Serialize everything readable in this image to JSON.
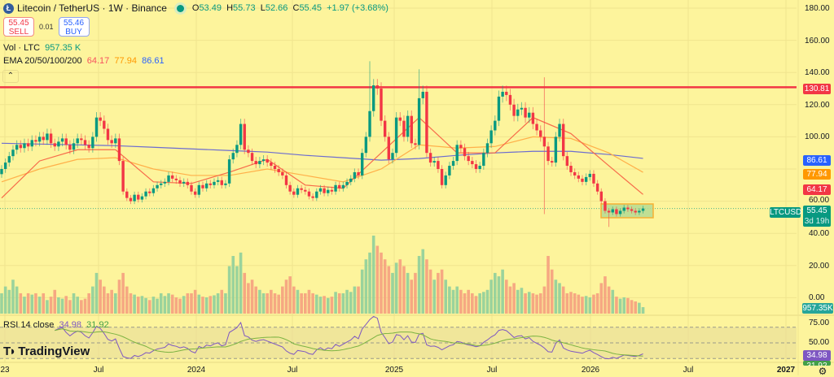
{
  "header": {
    "symbol_title": "Litecoin / TetherUS · 1W · Binance",
    "logo_letter": "Ł",
    "open_label": "O",
    "open": "53.49",
    "high_label": "H",
    "high": "55.73",
    "low_label": "L",
    "low": "52.66",
    "close_label": "C",
    "close": "55.45",
    "change": "+1.97 (+3.68%)"
  },
  "trade": {
    "sell_price": "55.45",
    "sell_label": "SELL",
    "spread": "0.01",
    "buy_price": "55.46",
    "buy_label": "BUY"
  },
  "volume_legend": {
    "label": "Vol · LTC",
    "value": "957.35 K"
  },
  "ema_legend": {
    "label": "EMA 20/50/100/200",
    "v1": "64.17",
    "v2": "77.94",
    "v3": "86.61"
  },
  "collapse_icon": "chevron-up-icon",
  "rsi_legend": {
    "label": "RSI 14 close",
    "value": "34.98",
    "ma": "31.92"
  },
  "brand": "TradingView",
  "price_axis": [
    "180.00",
    "160.00",
    "140.00",
    "120.00",
    "100.00",
    "60.00",
    "40.00",
    "20.00",
    "0.00"
  ],
  "rsi_axis": [
    "75.00",
    "50.00"
  ],
  "time_axis": [
    "23",
    "Jul",
    "2024",
    "Jul",
    "2025",
    "Jul",
    "2026",
    "Jul",
    "2027"
  ],
  "badges": {
    "resistance": "130.81",
    "ema200": "86.61",
    "ema50": "77.94",
    "ema20": "64.17",
    "symbol": "LTCUSDT",
    "last_price": "55.45",
    "countdown": "3d 19h",
    "volume": "957.35K",
    "rsi": "34.98",
    "rsi_ma": "31.92"
  },
  "colors": {
    "background": "#fdf49c",
    "up": "#089981",
    "down": "#f23645",
    "ema20": "#f7525f",
    "ema50": "#ff9800",
    "ema200": "#2962ff",
    "rsi": "#7e57c2",
    "rsi_ma": "#43a047",
    "resistance": "#f23645"
  },
  "chart_data": {
    "type": "candlestick",
    "interval": "1W",
    "ylim": [
      0,
      180
    ],
    "resistance_level": 130.81,
    "closes": [
      80,
      84,
      88,
      92,
      95,
      93,
      96,
      94,
      98,
      97,
      100,
      98,
      102,
      96,
      94,
      97,
      99,
      95,
      92,
      96,
      99,
      98,
      95,
      93,
      100,
      112,
      110,
      105,
      98,
      96,
      99,
      85,
      66,
      62,
      60,
      64,
      61,
      63,
      66,
      65,
      68,
      70,
      71,
      72,
      76,
      74,
      73,
      71,
      72,
      70,
      66,
      64,
      70,
      68,
      71,
      70,
      72,
      73,
      70,
      71,
      86,
      90,
      95,
      108,
      92,
      90,
      85,
      83,
      85,
      86,
      84,
      82,
      80,
      78,
      76,
      70,
      66,
      64,
      68,
      67,
      66,
      63,
      62,
      66,
      68,
      65,
      67,
      66,
      70,
      68,
      70,
      72,
      74,
      78,
      76,
      90,
      100,
      116,
      132,
      130,
      110,
      100,
      86,
      90,
      112,
      110,
      100,
      113,
      96,
      95,
      124,
      128,
      90,
      84,
      85,
      80,
      70,
      76,
      82,
      85,
      95,
      93,
      88,
      85,
      83,
      80,
      82,
      90,
      96,
      104,
      110,
      125,
      128,
      126,
      120,
      113,
      117,
      118,
      112,
      115,
      108,
      104,
      100,
      94,
      85,
      84,
      100,
      108,
      88,
      82,
      78,
      76,
      74,
      72,
      75,
      77,
      71,
      66,
      60,
      54,
      53,
      55,
      52,
      54,
      56,
      55,
      54,
      53,
      54,
      55.45
    ],
    "wick_extremes": [
      {
        "week": 97,
        "high": 147
      },
      {
        "week": 110,
        "high": 142
      },
      {
        "week": 143,
        "high": 137,
        "low": 52
      },
      {
        "week": 160,
        "low": 44
      }
    ],
    "volume_millions": [
      3,
      4,
      3.5,
      5,
      4,
      3,
      2.5,
      3,
      2.8,
      3,
      2.5,
      3,
      2,
      2.5,
      3.5,
      2.4,
      2.2,
      2.6,
      2,
      3,
      2.5,
      2,
      2.2,
      3,
      4,
      6,
      5,
      4,
      3,
      3.5,
      3,
      5,
      6,
      4,
      3,
      2.8,
      2.5,
      2.6,
      2.3,
      2,
      2.5,
      2.2,
      3,
      2.6,
      3,
      2.8,
      2.4,
      2.2,
      2.6,
      3,
      3,
      3.5,
      2.8,
      2.5,
      2.4,
      2.6,
      2.7,
      3,
      3.5,
      3,
      7,
      8.5,
      7,
      9,
      6,
      4.5,
      5,
      4,
      3.5,
      3,
      3,
      3.5,
      3,
      2.8,
      4,
      5,
      5.5,
      4,
      3.5,
      3,
      3,
      3.5,
      3,
      2.8,
      2.5,
      2.6,
      2.3,
      2.5,
      3.2,
      3,
      3,
      3.5,
      3.2,
      4,
      4,
      6.5,
      8,
      9,
      11.5,
      10,
      9,
      8,
      7,
      6,
      7.5,
      8,
      7,
      6,
      5,
      6,
      8.5,
      9.5,
      8,
      6.5,
      5,
      6,
      6.5,
      5,
      4,
      3.5,
      4,
      3.5,
      3,
      3.5,
      3,
      2.6,
      3,
      3.2,
      3.5,
      5,
      6,
      5.5,
      6.5,
      5,
      4,
      4.5,
      3.5,
      3.8,
      3,
      3.2,
      3,
      2.8,
      3,
      4,
      8.5,
      6.5,
      5,
      4.5,
      4,
      3,
      3.2,
      3,
      2.8,
      2.5,
      2.6,
      2.4,
      2.8,
      3,
      4.5,
      5.5,
      4,
      3.5,
      2.5,
      2.2,
      2.4,
      2.3,
      2,
      1.8,
      1.6,
      0.957
    ],
    "ema_sample_every_weeks": 10,
    "ema20": [
      62,
      85,
      92,
      92,
      72,
      71,
      78,
      86,
      70,
      68,
      90,
      112,
      90,
      90,
      112,
      102,
      82,
      64.17
    ],
    "ema50": [
      72,
      80,
      86,
      87,
      80,
      76,
      76,
      80,
      76,
      72,
      80,
      95,
      93,
      94,
      100,
      99,
      90,
      77.94
    ],
    "ema200": [
      96,
      95.5,
      95,
      94.5,
      93.5,
      92.5,
      91.5,
      90.5,
      88.5,
      87,
      85.5,
      86.5,
      88.5,
      90,
      91,
      91,
      89,
      86.61
    ],
    "rsi_period": 14,
    "rsi_bands": [
      70,
      50,
      30
    ]
  }
}
